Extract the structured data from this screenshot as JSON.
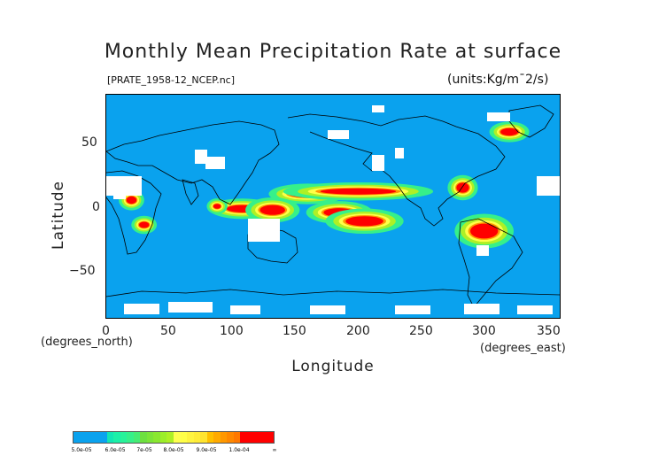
{
  "header": {
    "title": "Monthly Mean Precipitation Rate at surface",
    "source_file": "[PRATE_1958-12_NCEP.nc]",
    "units": "(units:Kg/m¯2/s)"
  },
  "chart_data": {
    "type": "heatmap",
    "title": "Monthly Mean Precipitation Rate at surface",
    "variable": "PRATE",
    "xlabel": "Longitude",
    "ylabel": "Latitude",
    "x_unit_label": "(degrees_east)",
    "y_unit_label": "(degrees_north)",
    "xlim": [
      0,
      360
    ],
    "ylim": [
      -90,
      90
    ],
    "x_ticks": [
      0,
      50,
      100,
      150,
      200,
      250,
      300,
      350
    ],
    "y_ticks": [
      -50,
      0,
      50
    ],
    "x_tick_labels": [
      "0",
      "50",
      "100",
      "150",
      "200",
      "250",
      "300",
      "350"
    ],
    "y_tick_labels": [
      "−50",
      "0",
      "50"
    ],
    "colorbar": {
      "labels": [
        "5.0e-05",
        "6.0e-05",
        "7e-05",
        "8.0e-05",
        "9.0e-05",
        "1.0e-04",
        "∞"
      ],
      "colors": [
        "#0aa2ee",
        "#0aa2ee",
        "#0aa2ee",
        "#0aa2ee",
        "#0aa2ee",
        "#12e6b4",
        "#1cf0a8",
        "#28f29a",
        "#36f08a",
        "#46ec74",
        "#6ee040",
        "#7ce438",
        "#8ae830",
        "#9cee2a",
        "#aef026",
        "#ffff50",
        "#ffff48",
        "#fff440",
        "#ffec38",
        "#ffe430",
        "#ffc000",
        "#ffaa00",
        "#ff9800",
        "#ff8800",
        "#ff7800",
        "#ff0000",
        "#ff0000",
        "#ff0000",
        "#ff0000",
        "#ff0000"
      ],
      "background_color": "#0aa2ee",
      "missing_color": "#ffffff"
    },
    "high_precip_regions": [
      {
        "lon": 160,
        "lat": 10,
        "w": 30,
        "h": 6
      },
      {
        "lon": 200,
        "lat": 12,
        "w": 60,
        "h": 5
      },
      {
        "lon": 185,
        "lat": -5,
        "w": 25,
        "h": 7
      },
      {
        "lon": 205,
        "lat": -12,
        "w": 30,
        "h": 8
      },
      {
        "lon": 108,
        "lat": -2,
        "w": 25,
        "h": 6
      },
      {
        "lon": 132,
        "lat": -3,
        "w": 20,
        "h": 8
      },
      {
        "lon": 20,
        "lat": 5,
        "w": 8,
        "h": 6
      },
      {
        "lon": 30,
        "lat": -15,
        "w": 8,
        "h": 5
      },
      {
        "lon": 283,
        "lat": 15,
        "w": 10,
        "h": 8
      },
      {
        "lon": 300,
        "lat": -20,
        "w": 22,
        "h": 12
      },
      {
        "lon": 320,
        "lat": 60,
        "w": 14,
        "h": 6
      },
      {
        "lon": 88,
        "lat": 0,
        "w": 6,
        "h": 4
      }
    ]
  }
}
